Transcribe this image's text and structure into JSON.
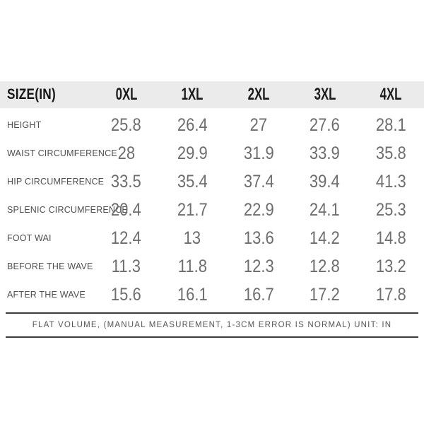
{
  "colors": {
    "header_band": "#ebebeb",
    "header_text": "#1a1a1a",
    "row_label_text": "#4f4f4f",
    "value_text": "#6d6d6d",
    "footer_rule": "#3c3c3c",
    "footer_text": "#565656",
    "background": "#ffffff"
  },
  "chart_data": {
    "type": "table",
    "title": "SIZE(IN)",
    "columns": [
      "0XL",
      "1XL",
      "2XL",
      "3XL",
      "4XL"
    ],
    "rows": [
      {
        "label": "HEIGHT",
        "values": [
          "25.8",
          "26.4",
          "27",
          "27.6",
          "28.1"
        ]
      },
      {
        "label": "WAIST CIRCUMFERENCE",
        "values": [
          "28",
          "29.9",
          "31.9",
          "33.9",
          "35.8"
        ]
      },
      {
        "label": "HIP CIRCUMFERENCE",
        "values": [
          "33.5",
          "35.4",
          "37.4",
          "39.4",
          "41.3"
        ]
      },
      {
        "label": "SPLENIC CIRCUMFERENCE",
        "values": [
          "20.4",
          "21.7",
          "22.9",
          "24.1",
          "25.3"
        ]
      },
      {
        "label": "FOOT WAI",
        "values": [
          "12.4",
          "13",
          "13.6",
          "14.2",
          "14.8"
        ]
      },
      {
        "label": "BEFORE THE WAVE",
        "values": [
          "11.3",
          "11.8",
          "12.3",
          "12.8",
          "13.2"
        ]
      },
      {
        "label": "AFTER THE WAVE",
        "values": [
          "15.6",
          "16.1",
          "16.7",
          "17.2",
          "17.8"
        ]
      }
    ],
    "footer_note": "FLAT VOLUME, (MANUAL MEASUREMENT, 1-3CM ERROR IS NORMAL) UNIT: IN",
    "layout": "size chart table; gray header band; no gridlines between rows; footer note between two dark horizontal rules; unit inches"
  }
}
